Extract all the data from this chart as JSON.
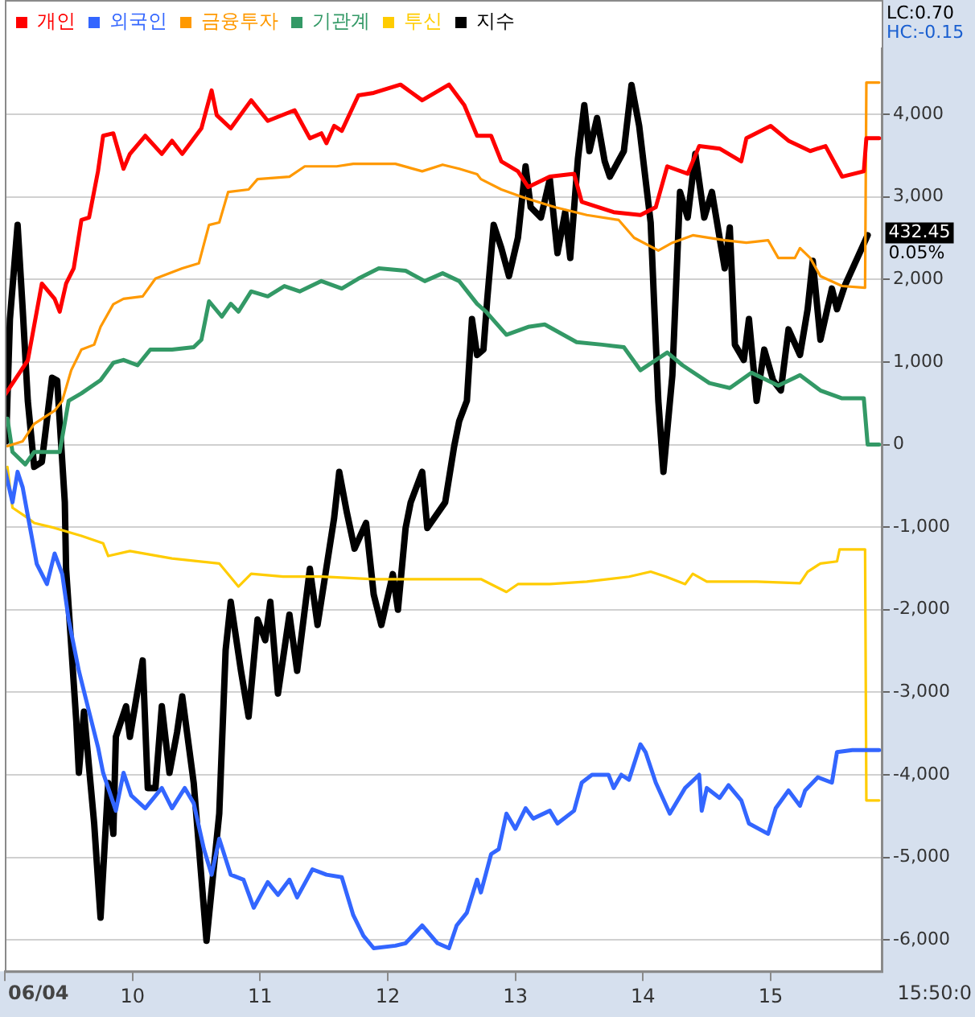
{
  "chart_data": {
    "type": "line",
    "xlabel": "15:50:0",
    "xlim": [
      9,
      15.87
    ],
    "ylim": [
      -6380,
      4800
    ],
    "xticks": [
      {
        "value": 9,
        "label": null
      },
      10,
      11,
      12,
      13,
      14,
      15
    ],
    "yticks": [
      {
        "value": -6000,
        "label": "-6,000"
      },
      {
        "value": -5000,
        "label": "-5,000"
      },
      {
        "value": -4000,
        "label": "-4,000"
      },
      {
        "value": -3000,
        "label": "-3,000"
      },
      {
        "value": -2000,
        "label": "-2,000"
      },
      {
        "value": -1000,
        "label": "-1,000"
      },
      0,
      {
        "value": 1000,
        "label": "1,000"
      },
      {
        "value": 2000,
        "label": "2,000"
      },
      {
        "value": 3000,
        "label": "3,000"
      },
      {
        "value": 4000,
        "label": "4,000"
      }
    ],
    "grid": "y",
    "legend": "top left",
    "annotations": [
      "06/04",
      "LC:0.70",
      "HC:-0.15",
      {
        "text": "432.45",
        "x": 15.76,
        "y": 2535
      },
      {
        "text": "0.05%",
        "x": 15.76,
        "y": 2535
      }
    ],
    "series": [
      {
        "name": "개인",
        "color": "#ff0000",
        "x": [
          9.0,
          9.18,
          9.29,
          9.39,
          9.43,
          9.48,
          9.54,
          9.6,
          9.66,
          9.73,
          9.77,
          9.85,
          9.93,
          9.98,
          10.1,
          10.23,
          10.31,
          10.39,
          10.54,
          10.62,
          10.66,
          10.77,
          10.93,
          11.06,
          11.27,
          11.39,
          11.48,
          11.52,
          11.58,
          11.64,
          11.77,
          11.89,
          12.1,
          12.27,
          12.48,
          12.6,
          12.7,
          12.81,
          12.89,
          13.02,
          13.1,
          13.27,
          13.46,
          13.52,
          13.77,
          13.98,
          14.1,
          14.19,
          14.35,
          14.44,
          14.6,
          14.77,
          14.81,
          15.0,
          15.14,
          15.31,
          15.43,
          15.56,
          15.73,
          15.75,
          15.85
        ],
        "values": [
          600,
          1020,
          1950,
          1765,
          1610,
          1950,
          2135,
          2720,
          2750,
          3310,
          3740,
          3770,
          3340,
          3520,
          3740,
          3520,
          3680,
          3520,
          3830,
          4290,
          3990,
          3830,
          4170,
          3920,
          4050,
          3710,
          3770,
          3650,
          3860,
          3800,
          4230,
          4260,
          4360,
          4170,
          4360,
          4110,
          3740,
          3740,
          3430,
          3310,
          3120,
          3245,
          3280,
          2940,
          2815,
          2780,
          2875,
          3370,
          3280,
          3615,
          3585,
          3430,
          3710,
          3860,
          3680,
          3555,
          3615,
          3245,
          3310,
          3710,
          3710
        ]
      },
      {
        "name": "외국인",
        "color": "#3366ff",
        "x": [
          9.0,
          9.06,
          9.1,
          9.14,
          9.18,
          9.25,
          9.33,
          9.39,
          9.45,
          9.5,
          9.58,
          9.66,
          9.73,
          9.77,
          9.87,
          9.93,
          9.99,
          10.1,
          10.23,
          10.31,
          10.41,
          10.48,
          10.56,
          10.62,
          10.68,
          10.77,
          10.87,
          10.95,
          11.06,
          11.14,
          11.23,
          11.29,
          11.41,
          11.52,
          11.64,
          11.73,
          11.81,
          11.89,
          12.06,
          12.14,
          12.27,
          12.39,
          12.48,
          12.54,
          12.62,
          12.7,
          12.73,
          12.81,
          12.87,
          12.93,
          13.0,
          13.08,
          13.14,
          13.27,
          13.33,
          13.46,
          13.52,
          13.6,
          13.73,
          13.77,
          13.83,
          13.89,
          13.98,
          14.02,
          14.1,
          14.21,
          14.33,
          14.44,
          14.46,
          14.5,
          14.6,
          14.67,
          14.77,
          14.83,
          14.98,
          15.04,
          15.14,
          15.23,
          15.27,
          15.37,
          15.48,
          15.52,
          15.64,
          15.85
        ],
        "values": [
          -300,
          -700,
          -330,
          -520,
          -860,
          -1445,
          -1690,
          -1320,
          -1570,
          -2120,
          -2740,
          -3235,
          -3665,
          -3975,
          -4435,
          -3975,
          -4250,
          -4405,
          -4160,
          -4405,
          -4160,
          -4345,
          -4900,
          -5210,
          -4775,
          -5210,
          -5270,
          -5610,
          -5300,
          -5455,
          -5270,
          -5485,
          -5145,
          -5210,
          -5240,
          -5700,
          -5950,
          -6100,
          -6070,
          -6040,
          -5825,
          -6040,
          -6100,
          -5825,
          -5670,
          -5270,
          -5425,
          -4960,
          -4900,
          -4470,
          -4655,
          -4405,
          -4530,
          -4435,
          -4590,
          -4435,
          -4095,
          -4000,
          -4000,
          -4160,
          -4000,
          -4060,
          -3630,
          -3725,
          -4095,
          -4470,
          -4160,
          -4000,
          -4435,
          -4160,
          -4280,
          -4125,
          -4310,
          -4590,
          -4715,
          -4405,
          -4190,
          -4375,
          -4190,
          -4030,
          -4095,
          -3725,
          -3700,
          -3700
        ]
      },
      {
        "name": "금융투자",
        "color": "#ff9900",
        "x": [
          9.02,
          9.14,
          9.23,
          9.39,
          9.45,
          9.52,
          9.6,
          9.7,
          9.75,
          9.85,
          9.93,
          10.08,
          10.18,
          10.39,
          10.52,
          10.6,
          10.68,
          10.75,
          10.91,
          10.98,
          11.23,
          11.35,
          11.6,
          11.73,
          12.06,
          12.27,
          12.43,
          12.56,
          12.7,
          12.73,
          12.89,
          13.06,
          13.31,
          13.56,
          13.81,
          13.93,
          14.12,
          14.23,
          14.39,
          14.64,
          14.81,
          14.98,
          15.06,
          15.19,
          15.23,
          15.31,
          15.39,
          15.56,
          15.74,
          15.75,
          15.85
        ],
        "values": [
          -20,
          40,
          250,
          410,
          530,
          900,
          1150,
          1210,
          1425,
          1700,
          1765,
          1795,
          2010,
          2135,
          2195,
          2660,
          2690,
          3060,
          3090,
          3215,
          3245,
          3370,
          3370,
          3400,
          3400,
          3310,
          3390,
          3340,
          3275,
          3215,
          3090,
          2995,
          2875,
          2780,
          2720,
          2505,
          2350,
          2445,
          2535,
          2475,
          2445,
          2475,
          2260,
          2260,
          2380,
          2260,
          2040,
          1920,
          1900,
          4385,
          4385
        ]
      },
      {
        "name": "기관계",
        "color": "#339966",
        "x": [
          9.02,
          9.06,
          9.16,
          9.23,
          9.43,
          9.5,
          9.6,
          9.75,
          9.85,
          9.93,
          10.04,
          10.14,
          10.31,
          10.48,
          10.54,
          10.6,
          10.7,
          10.77,
          10.83,
          10.93,
          11.06,
          11.19,
          11.31,
          11.48,
          11.64,
          11.77,
          11.93,
          12.14,
          12.29,
          12.43,
          12.56,
          12.7,
          12.77,
          12.93,
          13.1,
          13.23,
          13.48,
          13.68,
          13.85,
          13.98,
          14.19,
          14.31,
          14.52,
          14.68,
          14.85,
          15.06,
          15.23,
          15.39,
          15.56,
          15.73,
          15.76,
          15.85
        ],
        "values": [
          315,
          -90,
          -240,
          -90,
          -90,
          530,
          620,
          780,
          990,
          1025,
          960,
          1150,
          1150,
          1180,
          1270,
          1735,
          1550,
          1705,
          1610,
          1855,
          1795,
          1920,
          1855,
          1980,
          1890,
          2010,
          2135,
          2105,
          1980,
          2075,
          1980,
          1705,
          1610,
          1330,
          1425,
          1455,
          1240,
          1210,
          1180,
          900,
          1115,
          960,
          745,
          685,
          870,
          715,
          840,
          655,
          560,
          560,
          0,
          0
        ]
      },
      {
        "name": "투신",
        "color": "#ffcc00",
        "x": [
          9.02,
          9.06,
          9.18,
          9.23,
          9.39,
          9.6,
          9.77,
          9.81,
          9.98,
          10.31,
          10.68,
          10.83,
          10.93,
          11.18,
          11.48,
          11.89,
          12.56,
          12.73,
          12.93,
          13.02,
          13.27,
          13.56,
          13.89,
          14.06,
          14.18,
          14.33,
          14.39,
          14.5,
          14.89,
          15.23,
          15.29,
          15.39,
          15.52,
          15.54,
          15.74,
          15.75,
          15.85
        ],
        "values": [
          -270,
          -765,
          -890,
          -950,
          -1010,
          -1105,
          -1195,
          -1350,
          -1290,
          -1380,
          -1440,
          -1720,
          -1565,
          -1600,
          -1600,
          -1630,
          -1630,
          -1630,
          -1785,
          -1690,
          -1690,
          -1660,
          -1600,
          -1540,
          -1600,
          -1690,
          -1565,
          -1660,
          -1660,
          -1680,
          -1540,
          -1440,
          -1415,
          -1270,
          -1270,
          -4310,
          -4310
        ]
      },
      {
        "name": "지수",
        "color": "#000000",
        "x": [
          9.01,
          9.04,
          9.1,
          9.14,
          9.18,
          9.23,
          9.29,
          9.37,
          9.41,
          9.47,
          9.48,
          9.52,
          9.56,
          9.58,
          9.62,
          9.7,
          9.75,
          9.81,
          9.85,
          9.87,
          9.95,
          9.98,
          10.08,
          10.12,
          10.18,
          10.23,
          10.29,
          10.35,
          10.39,
          10.48,
          10.58,
          10.68,
          10.73,
          10.77,
          10.85,
          10.91,
          10.98,
          11.04,
          11.08,
          11.14,
          11.23,
          11.29,
          11.39,
          11.45,
          11.58,
          11.62,
          11.68,
          11.74,
          11.83,
          11.89,
          11.95,
          12.04,
          12.08,
          12.14,
          12.18,
          12.27,
          12.31,
          12.45,
          12.52,
          12.56,
          12.62,
          12.66,
          12.7,
          12.75,
          12.78,
          12.83,
          12.89,
          12.95,
          13.02,
          13.08,
          13.12,
          13.2,
          13.27,
          13.33,
          13.39,
          13.43,
          13.49,
          13.54,
          13.58,
          13.64,
          13.7,
          13.74,
          13.85,
          13.91,
          13.97,
          14.06,
          14.12,
          14.16,
          14.23,
          14.29,
          14.35,
          14.41,
          14.48,
          14.54,
          14.64,
          14.68,
          14.72,
          14.79,
          14.83,
          14.89,
          14.95,
          15.02,
          15.08,
          15.14,
          15.23,
          15.29,
          15.33,
          15.39,
          15.48,
          15.52,
          15.58,
          15.76
        ],
        "values": [
          40,
          1520,
          2660,
          1640,
          530,
          -270,
          -210,
          810,
          775,
          -700,
          -1505,
          -2430,
          -3355,
          -3975,
          -3235,
          -4590,
          -5730,
          -4100,
          -4715,
          -3540,
          -3170,
          -3540,
          -2615,
          -4160,
          -4160,
          -3170,
          -3975,
          -3480,
          -3050,
          -4100,
          -6010,
          -4470,
          -2490,
          -1905,
          -2740,
          -3295,
          -2120,
          -2370,
          -1905,
          -3015,
          -2060,
          -2740,
          -1505,
          -2185,
          -890,
          -330,
          -825,
          -1260,
          -950,
          -1815,
          -2185,
          -1570,
          -2000,
          -1010,
          -700,
          -330,
          -1010,
          -700,
          -25,
          285,
          530,
          1520,
          1085,
          1150,
          1765,
          2660,
          2380,
          2040,
          2505,
          3370,
          2875,
          2750,
          3215,
          2320,
          2815,
          2260,
          3460,
          4110,
          3555,
          3955,
          3430,
          3245,
          3555,
          4355,
          3860,
          2690,
          530,
          -330,
          840,
          3060,
          2750,
          3520,
          2750,
          3060,
          2135,
          2630,
          1210,
          1025,
          1520,
          530,
          1150,
          775,
          655,
          1395,
          1085,
          1640,
          2225,
          1270,
          1890,
          1640,
          1920,
          2535
        ]
      }
    ]
  }
}
